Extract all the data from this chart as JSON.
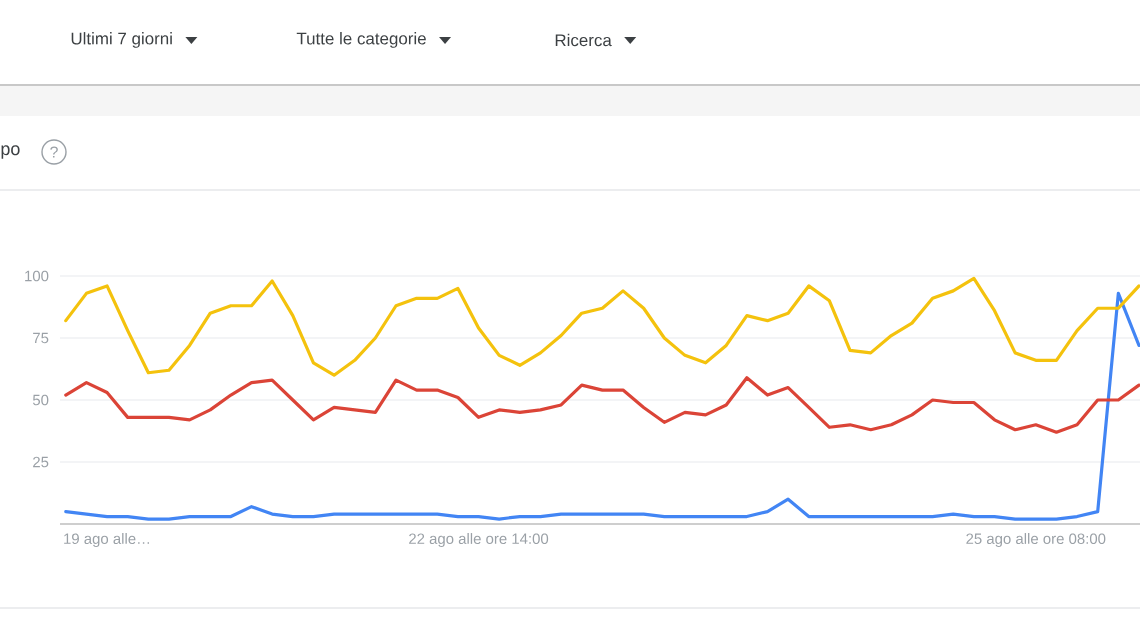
{
  "chart_data": {
    "type": "line",
    "title": "po",
    "annotations": [
      "Ultimi 7 giorni",
      "Tutte le categorie",
      "Ricerca",
      "?"
    ],
    "categories": [
      null,
      null,
      "19 ago alle…",
      null,
      null,
      null,
      null,
      null,
      null,
      null,
      null,
      null,
      null,
      null,
      null,
      null,
      null,
      null,
      null,
      null,
      "22 ago alle ore 14:00",
      null,
      null,
      null,
      null,
      null,
      null,
      null,
      null,
      null,
      null,
      null,
      null,
      null,
      null,
      null,
      null,
      null,
      null,
      null,
      null,
      null,
      null,
      null,
      null,
      null,
      null,
      "25 ago alle ore 08:00",
      null,
      null,
      null,
      null,
      null
    ],
    "series": [
      {
        "color": "#4285f4",
        "values": [
          5,
          4,
          3,
          3,
          2,
          2,
          3,
          3,
          3,
          7,
          4,
          3,
          3,
          4,
          4,
          4,
          4,
          4,
          4,
          3,
          3,
          2,
          3,
          3,
          4,
          4,
          4,
          4,
          4,
          3,
          3,
          3,
          3,
          3,
          5,
          10,
          3,
          3,
          3,
          3,
          3,
          3,
          3,
          4,
          3,
          3,
          2,
          2,
          2,
          3,
          5,
          93,
          72
        ]
      },
      {
        "color": "#db4437",
        "values": [
          52,
          57,
          53,
          43,
          43,
          43,
          42,
          46,
          52,
          57,
          58,
          50,
          42,
          47,
          46,
          45,
          58,
          54,
          54,
          51,
          43,
          46,
          45,
          46,
          48,
          56,
          54,
          54,
          47,
          41,
          45,
          44,
          48,
          59,
          52,
          55,
          47,
          39,
          40,
          38,
          40,
          44,
          50,
          49,
          49,
          42,
          38,
          40,
          37,
          40,
          50,
          50,
          56
        ]
      },
      {
        "color": "#f4c20d",
        "values": [
          82,
          93,
          96,
          78,
          61,
          62,
          72,
          85,
          88,
          88,
          98,
          84,
          65,
          60,
          66,
          75,
          88,
          91,
          91,
          95,
          79,
          68,
          64,
          69,
          76,
          85,
          87,
          94,
          87,
          75,
          68,
          65,
          72,
          84,
          82,
          85,
          96,
          90,
          70,
          69,
          76,
          81,
          91,
          94,
          99,
          86,
          69,
          66,
          66,
          78,
          87,
          87,
          96
        ]
      }
    ],
    "ylim": [
      0,
      100
    ],
    "yticks": [
      25,
      50,
      75,
      100
    ],
    "grid": "y",
    "marker": "none",
    "line_style": "solid"
  }
}
